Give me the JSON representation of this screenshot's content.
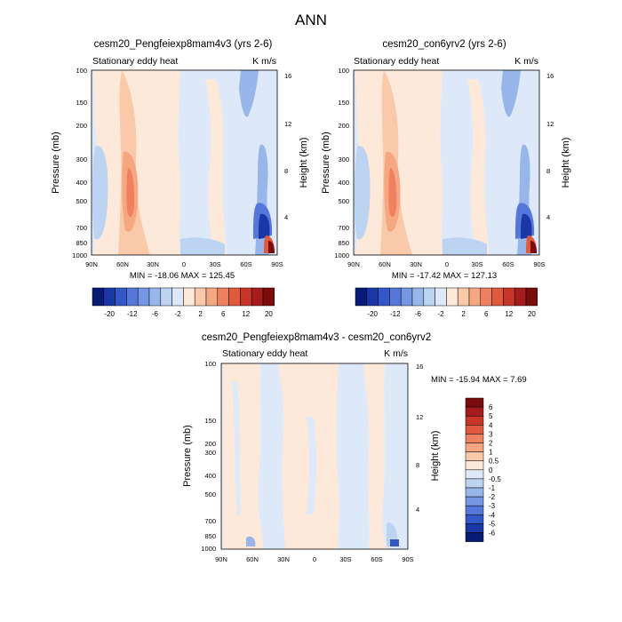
{
  "figure": {
    "title": "ANN"
  },
  "colors": {
    "pos": [
      "#fde9da",
      "#f9c9aa",
      "#f5a782",
      "#ef8160",
      "#e05a3f",
      "#c8362a",
      "#a51c1c",
      "#7b0c0c"
    ],
    "neg": [
      "#dde9f8",
      "#bcd3f2",
      "#98b6ea",
      "#7596e2",
      "#5577d9",
      "#3457c8",
      "#1937a6",
      "#081b74"
    ]
  },
  "chart_data": [
    {
      "type": "contour",
      "title": "cesm20_Pengfeiexp8mam4v3 (yrs 2-6)",
      "subtitle": "Stationary eddy heat",
      "units": "K m/s",
      "xlabel": "",
      "ylabel": "Pressure (mb)",
      "y2label": "Height (km)",
      "x_ticks": [
        "90N",
        "60N",
        "30N",
        "0",
        "30S",
        "60S",
        "90S"
      ],
      "y_ticks": [
        100,
        150,
        200,
        250,
        300,
        400,
        500,
        700,
        850,
        1000
      ],
      "y_tick_labels": [
        "100",
        "150",
        "200",
        "",
        "300",
        "400",
        "500",
        "700",
        "850",
        "1000"
      ],
      "y2_ticks": [
        16,
        12,
        8,
        4
      ],
      "ylim": [
        1000,
        100
      ],
      "xlim": [
        "90N",
        "90S"
      ],
      "stats_text": "MIN = -18.06   MAX = 125.45",
      "min": -18.06,
      "max": 125.45,
      "colorbar_levels": [
        "-20",
        "-12",
        "-6",
        "-2",
        "2",
        "6",
        "12",
        "20"
      ]
    },
    {
      "type": "contour",
      "title": "cesm20_con6yrv2 (yrs 2-6)",
      "subtitle": "Stationary eddy heat",
      "units": "K m/s",
      "xlabel": "",
      "ylabel": "Pressure (mb)",
      "y2label": "Height (km)",
      "x_ticks": [
        "90N",
        "60N",
        "30N",
        "0",
        "30S",
        "60S",
        "90S"
      ],
      "y_ticks": [
        100,
        150,
        200,
        250,
        300,
        400,
        500,
        700,
        850,
        1000
      ],
      "y_tick_labels": [
        "100",
        "150",
        "200",
        "",
        "300",
        "400",
        "500",
        "700",
        "850",
        "1000"
      ],
      "y2_ticks": [
        16,
        12,
        8,
        4
      ],
      "ylim": [
        1000,
        100
      ],
      "xlim": [
        "90N",
        "90S"
      ],
      "stats_text": "MIN = -17.42   MAX = 127.13",
      "min": -17.42,
      "max": 127.13,
      "colorbar_levels": [
        "-20",
        "-12",
        "-6",
        "-2",
        "2",
        "6",
        "12",
        "20"
      ]
    },
    {
      "type": "contour",
      "title": "cesm20_Pengfeiexp8mam4v3 - cesm20_con6yrv2",
      "subtitle": "Stationary eddy heat",
      "units": "K m/s",
      "xlabel": "",
      "ylabel": "Pressure (mb)",
      "y2label": "Height (km)",
      "x_ticks": [
        "90N",
        "60N",
        "30N",
        "0",
        "30S",
        "60S",
        "90S"
      ],
      "y_ticks": [
        100,
        150,
        200,
        250,
        300,
        400,
        500,
        700,
        850,
        1000
      ],
      "y_tick_labels": [
        "100",
        "150",
        "200",
        "",
        "300",
        "400",
        "500",
        "700",
        "850",
        "1000"
      ],
      "y2_ticks": [
        16,
        12,
        8,
        4
      ],
      "ylim": [
        1000,
        100
      ],
      "xlim": [
        "90N",
        "90S"
      ],
      "stats_text": "MIN = -15.94   MAX =   7.69",
      "min": -15.94,
      "max": 7.69,
      "colorbar_levels": [
        "6",
        "5",
        "4",
        "3",
        "2",
        "1",
        "0.5",
        "0",
        "-0.5",
        "-1",
        "-2",
        "-3",
        "-4",
        "-5",
        "-6"
      ]
    }
  ]
}
